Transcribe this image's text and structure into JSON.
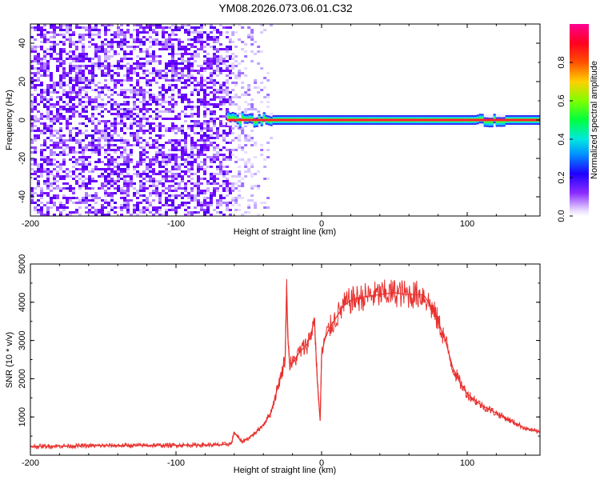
{
  "chart_data": [
    {
      "type": "heatmap",
      "title": "YM08.2026.073.06.01.C32",
      "xlabel": "Height of straight line (km)",
      "ylabel": "Frequency (Hz)",
      "xlim": [
        -200,
        150
      ],
      "ylim": [
        -50,
        50
      ],
      "x_ticks": [
        -200,
        -100,
        0,
        100
      ],
      "y_ticks": [
        -40,
        -20,
        0,
        20,
        40
      ],
      "colorbar": {
        "label": "Normalized spectral amplitude",
        "range": [
          0,
          1
        ],
        "ticks": [
          "0.0",
          "0.2",
          "0.4",
          "0.6",
          "0.8"
        ],
        "colormap": [
          "#ffffff",
          "#b59cff",
          "#6a00ff",
          "#0000ff",
          "#00c0ff",
          "#00ff60",
          "#c0ff00",
          "#ff8000",
          "#ff0000",
          "#ff00a0"
        ]
      },
      "regions": [
        {
          "name": "broadband noise",
          "x_range": [
            -200,
            -62
          ],
          "amplitude": 0.15
        },
        {
          "name": "sparse noise",
          "x_range": [
            -62,
            -35
          ],
          "amplitude": 0.08
        },
        {
          "name": "narrow tone",
          "x_range": [
            -65,
            150
          ],
          "frequency_hz": 0,
          "amplitude": 1.0
        }
      ]
    },
    {
      "type": "line",
      "xlabel": "Height of straight line (km)",
      "ylabel": "SNR (10 * v/v)",
      "xlim": [
        -200,
        150
      ],
      "ylim": [
        0,
        5000
      ],
      "x_ticks": [
        -200,
        -100,
        0,
        100
      ],
      "y_ticks": [
        1000,
        2000,
        3000,
        4000,
        5000
      ],
      "series": [
        {
          "name": "SNR",
          "color": "#e8312e",
          "x": [
            -200,
            -150,
            -100,
            -70,
            -62,
            -60,
            -55,
            -50,
            -45,
            -40,
            -35,
            -32,
            -30,
            -27,
            -25,
            -24,
            -23,
            -22,
            -20,
            -15,
            -10,
            -7,
            -5,
            -3,
            -1,
            0,
            2,
            5,
            10,
            15,
            20,
            25,
            30,
            40,
            50,
            60,
            70,
            75,
            80,
            85,
            90,
            95,
            100,
            110,
            120,
            130,
            140,
            150
          ],
          "y": [
            230,
            250,
            260,
            270,
            300,
            600,
            350,
            450,
            600,
            800,
            1100,
            1500,
            1800,
            2200,
            2600,
            4400,
            3000,
            2400,
            2400,
            2700,
            2900,
            3200,
            3600,
            2000,
            900,
            2600,
            3000,
            3300,
            3600,
            3900,
            4050,
            4100,
            4150,
            4200,
            4250,
            4200,
            4200,
            3900,
            3500,
            3000,
            2300,
            1900,
            1600,
            1300,
            1100,
            900,
            700,
            600
          ]
        }
      ]
    }
  ]
}
